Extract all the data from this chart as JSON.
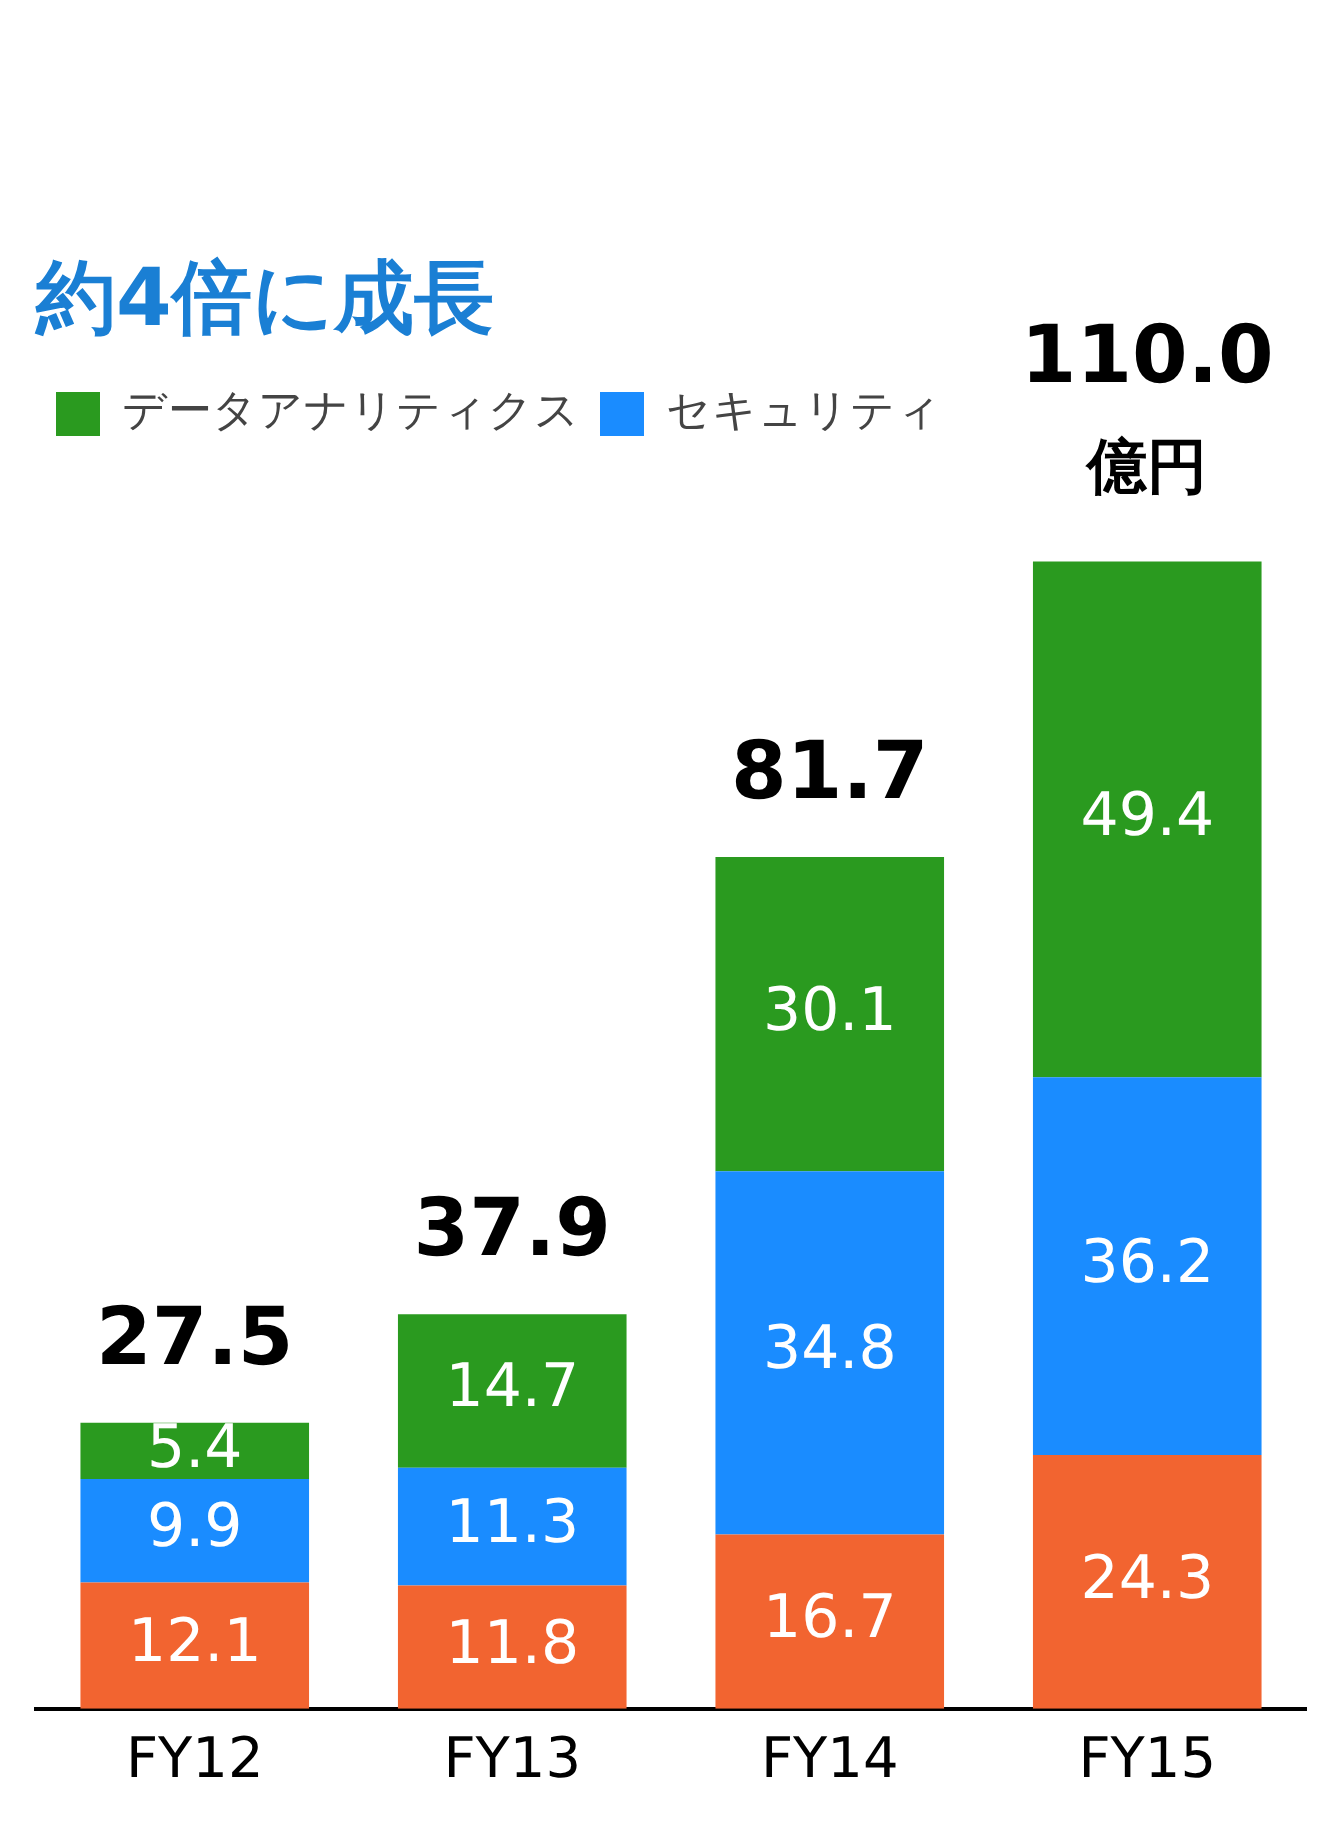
{
  "chart_data": {
    "type": "bar",
    "title": "約4倍に成長",
    "categories": [
      "FY12",
      "FY13",
      "FY14",
      "FY15"
    ],
    "stacked": true,
    "data_labels": true,
    "legend": "top left",
    "grid": false,
    "series": [
      {
        "color": "#f26430",
        "values": [
          12.1,
          11.8,
          16.7,
          24.3
        ]
      },
      {
        "name": "セキュリティ",
        "color": "#1a8cff",
        "values": [
          9.9,
          11.3,
          34.8,
          36.2
        ]
      },
      {
        "name": "データアナリティクス",
        "color": "#2a9a1f",
        "values": [
          5.4,
          14.7,
          30.1,
          49.4
        ]
      }
    ],
    "totals": [
      "27.5",
      "37.9",
      "81.7",
      "110.0"
    ],
    "annotations": [
      "億円"
    ]
  }
}
